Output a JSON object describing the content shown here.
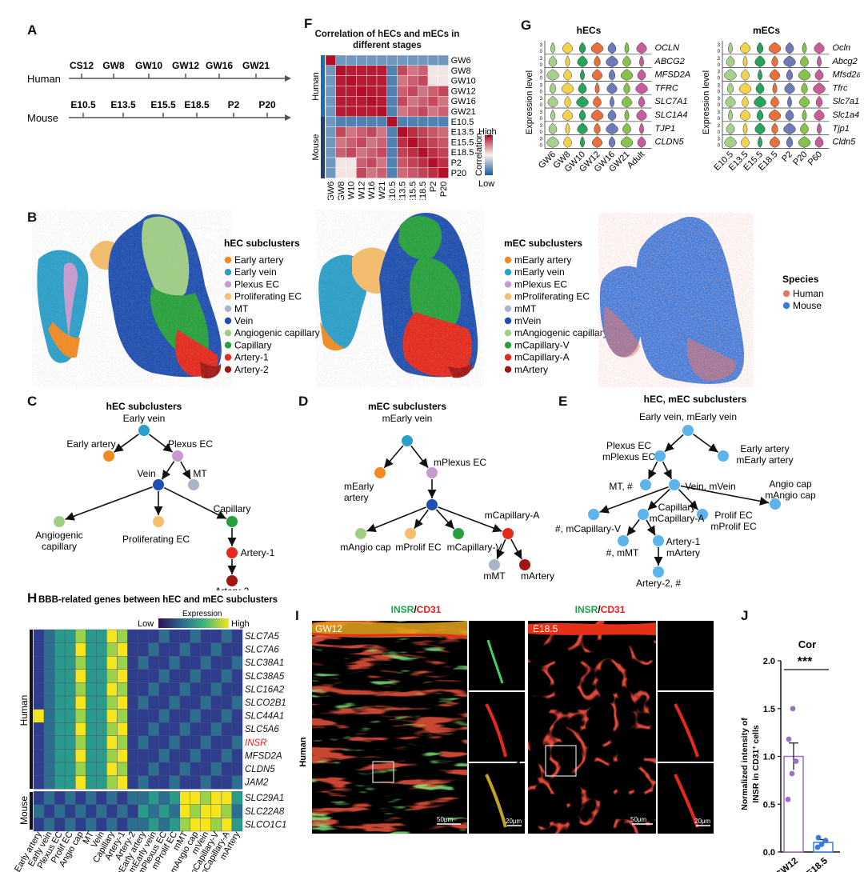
{
  "panels": {
    "a": "A",
    "b": "B",
    "c": "C",
    "d": "D",
    "e": "E",
    "f": "F",
    "g": "G",
    "h": "H",
    "i": "I",
    "j": "J"
  },
  "timeline": {
    "human_label": "Human",
    "mouse_label": "Mouse",
    "human_stages": [
      "CS12",
      "GW8",
      "GW10",
      "GW12",
      "GW16",
      "GW21"
    ],
    "mouse_stages": [
      "E10.5",
      "E13.5",
      "E15.5",
      "E18.5",
      "P2",
      "P20"
    ]
  },
  "umap": {
    "hec_legend_title": "hEC subclusters",
    "hec_items": [
      "Early artery",
      "Early vein",
      "Plexus EC",
      "Proliferating EC",
      "MT",
      "Vein",
      "Angiogenic capillary",
      "Capillary",
      "Artery-1",
      "Artery-2"
    ],
    "mec_legend_title": "mEC subclusters",
    "mec_items": [
      "mEarly artery",
      "mEarly vein",
      "mPlexus EC",
      "mProliferating EC",
      "mMT",
      "mVein",
      "mAngiogenic capillary",
      "mCapillary-V",
      "mCapillary-A",
      "mArtery"
    ],
    "cluster_colors": [
      "#f28a22",
      "#2a9fc9",
      "#c79bd0",
      "#f6bd6a",
      "#a9b4c6",
      "#1f4fb0",
      "#9fcf86",
      "#27a13b",
      "#e52a1c",
      "#a11613"
    ],
    "species_legend_title": "Species",
    "species_items": [
      "Human",
      "Mouse"
    ],
    "species_colors": [
      "#e8776b",
      "#3a7be0"
    ]
  },
  "trees": {
    "c": {
      "title": "hEC subclusters",
      "nodes": [
        "Early vein",
        "Early artery",
        "Plexus EC",
        "Vein",
        "MT",
        "Angiogenic capillary",
        "Proliferating EC",
        "Capillary",
        "Artery-1",
        "Artery-2"
      ]
    },
    "d": {
      "title": "mEC subclusters",
      "nodes": [
        "mEarly vein",
        "mEarly artery",
        "mPlexus EC",
        "mVein",
        "mAngio cap",
        "mProlif EC",
        "mCapillary-V",
        "mCapillary-A",
        "mMT",
        "mArtery"
      ]
    },
    "e": {
      "title": "hEC, mEC subclusters",
      "nodes": [
        "Early vein, mEarly vein",
        "Plexus EC",
        "mPlexus EC",
        "Early artery",
        "mEarly artery",
        "MT, #",
        "Vein, mVein",
        "Angio cap",
        "mAngio cap",
        "#, mCapillary-V",
        "Capillary",
        "mCapillary-A",
        "Prolif EC",
        "mProlif EC",
        "#, mMT",
        "Artery-1",
        "mArtery",
        "Artery-2, #"
      ]
    }
  },
  "panel_f": {
    "title_line1": "Correlation of hECs and mECs in",
    "title_line2": "different stages",
    "human_label": "Human",
    "mouse_label": "Mouse",
    "stages": [
      "GW6",
      "GW8",
      "GW10",
      "GW12",
      "GW16",
      "GW21",
      "E10.5",
      "E13.5",
      "E15.5",
      "E18.5",
      "P2",
      "P20"
    ],
    "legend_high": "High",
    "legend_low": "Low",
    "legend_title": "Correlation"
  },
  "panel_g": {
    "hecs_title": "hECs",
    "mecs_title": "mECs",
    "ylabel": "Expression level",
    "hecs_genes": [
      "OCLN",
      "ABCG2",
      "MFSD2A",
      "TFRC",
      "SLC7A1",
      "SLC1A4",
      "TJP1",
      "CLDN5"
    ],
    "mecs_genes": [
      "Ocln",
      "Abcg2",
      "Mfsd2a",
      "Tfrc",
      "Slc7a1",
      "Slc1a4",
      "Tjp1",
      "Cldn5"
    ],
    "hecs_stages": [
      "GW6",
      "GW8",
      "GW10",
      "GW12",
      "GW16",
      "GW21",
      "Adult"
    ],
    "mecs_stages": [
      "E10.5",
      "E13.5",
      "E15.5",
      "E18.5",
      "P2",
      "P20",
      "P60"
    ],
    "violin_colors": [
      "#a7d08b",
      "#f4d24a",
      "#28a35c",
      "#e8703c",
      "#6f7bb8",
      "#86c24c",
      "#c95d9c"
    ]
  },
  "panel_h": {
    "title": "BBB-related genes between hEC and mEC subclusters",
    "legend_title": "Expression",
    "legend_low": "Low",
    "legend_high": "High",
    "human_label": "Human",
    "mouse_label": "Mouse",
    "genes": [
      "SLC7A5",
      "SLC7A6",
      "SLC38A1",
      "SLC38A5",
      "SLC16A2",
      "SLCO2B1",
      "SLC44A1",
      "SLC5A6",
      "INSR",
      "MFSD2A",
      "CLDN5",
      "JAM2",
      "SLC29A1",
      "SLC22A8",
      "SLCO1C1"
    ],
    "highlight_color": "#e02020",
    "columns": [
      "Early artery",
      "Early vein",
      "Plexus EC",
      "Prolif EC",
      "Angio cap",
      "MT",
      "Vein",
      "Capillary",
      "Artery-1",
      "Artery-2",
      "mEarly artery",
      "mEarly vein",
      "mPlexus EC",
      "mProlif EC",
      "mMT",
      "mAngio cap",
      "mVein",
      "mCapillary-V",
      "mCapillary-A",
      "mArtery"
    ]
  },
  "panel_i": {
    "insr": "INSR",
    "slash": "/",
    "cd31": "CD31",
    "human_stage": "GW12",
    "mouse_stage": "E18.5",
    "human_label": "Human",
    "mouse_label": "Mouse",
    "scale_large": "50μm",
    "scale_small": "20μm"
  },
  "panel_j": {
    "title": "Cor",
    "significance": "***",
    "ylabel_line1": "Normalized intensity of",
    "ylabel_line2": "INSR in CD31",
    "ylabel_sup": "+",
    "ylabel_end": " cells",
    "yticks": [
      "0.0",
      "0.5",
      "1.0",
      "1.5",
      "2.0"
    ]
  },
  "chart_data": {
    "type": "bar",
    "title": "Cor",
    "categories": [
      "GW12",
      "E18.5"
    ],
    "values": [
      1.0,
      0.1
    ],
    "error": [
      0.14,
      0.03
    ],
    "points": [
      [
        0.55,
        0.82,
        0.95,
        1.18,
        1.5
      ],
      [
        0.05,
        0.08,
        0.12,
        0.15
      ]
    ],
    "ylabel": "Normalized intensity of INSR in CD31+ cells",
    "ylim": [
      0,
      2.0
    ],
    "bar_colors": [
      "#9a6fc4",
      "#3a7be0"
    ],
    "significance": "***"
  }
}
